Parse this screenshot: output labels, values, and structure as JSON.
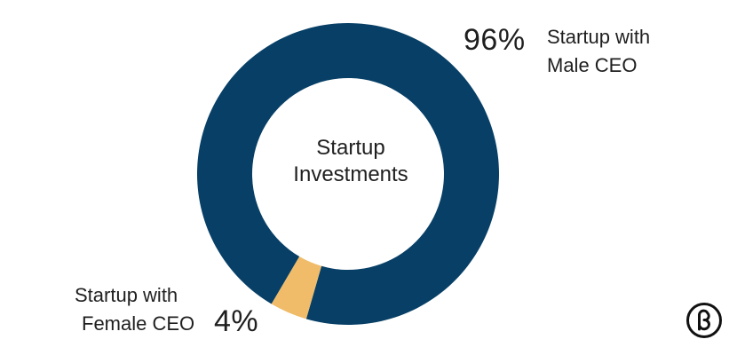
{
  "chart_data": {
    "type": "pie",
    "center_label_lines": [
      "Startup",
      "Investments"
    ],
    "slices": [
      {
        "percent_label": "96%",
        "value": 96,
        "label_lines": [
          "Startup with",
          "Male CEO"
        ],
        "color": "#073f66"
      },
      {
        "percent_label": "4%",
        "value": 4,
        "label_lines": [
          "Startup with",
          "Female CEO"
        ],
        "color": "#f0bc69"
      }
    ]
  },
  "logo": {
    "icon": "beta-logo-icon"
  }
}
